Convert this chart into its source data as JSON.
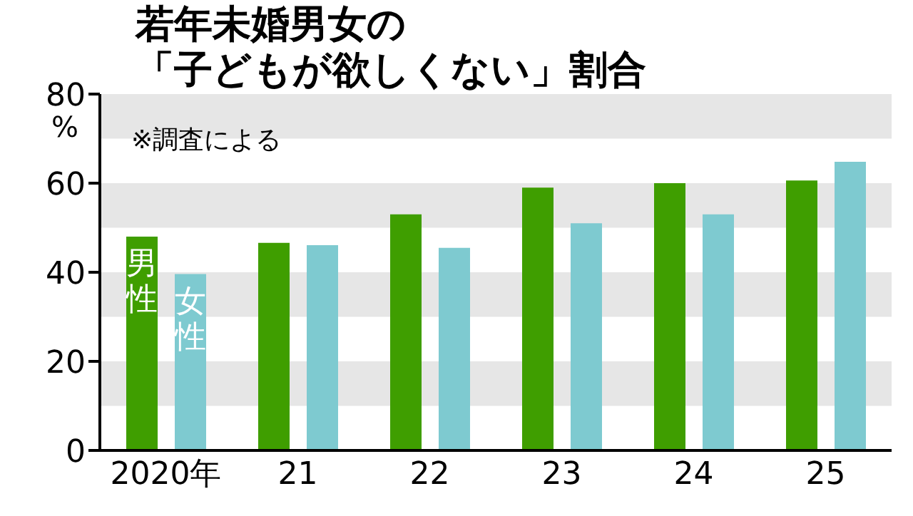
{
  "chart_data": {
    "type": "bar",
    "title": "若年未婚男女の「子どもが欲しくない」割合",
    "ylabel": "%",
    "annotations": [
      "※調査による"
    ],
    "categories": [
      "2020年",
      "21",
      "22",
      "23",
      "24",
      "25"
    ],
    "series": [
      {
        "name": "男性",
        "color": "#3f9e00",
        "values": [
          48,
          46.6,
          53,
          59,
          60,
          60.6
        ]
      },
      {
        "name": "女性",
        "color": "#7ecad0",
        "values": [
          39.6,
          46.1,
          45.5,
          51,
          53,
          64.8
        ]
      }
    ],
    "ylim": [
      0,
      80
    ],
    "yticks": [
      0,
      20,
      40,
      60,
      80
    ],
    "bands": [
      {
        "axis": "y",
        "from": 10,
        "to": 20,
        "color": "#e6e6e6"
      },
      {
        "axis": "y",
        "from": 30,
        "to": 40,
        "color": "#e6e6e6"
      },
      {
        "axis": "y",
        "from": 50,
        "to": 60,
        "color": "#e6e6e6"
      },
      {
        "axis": "y",
        "from": 70,
        "to": 80,
        "color": "#e6e6e6"
      }
    ]
  }
}
